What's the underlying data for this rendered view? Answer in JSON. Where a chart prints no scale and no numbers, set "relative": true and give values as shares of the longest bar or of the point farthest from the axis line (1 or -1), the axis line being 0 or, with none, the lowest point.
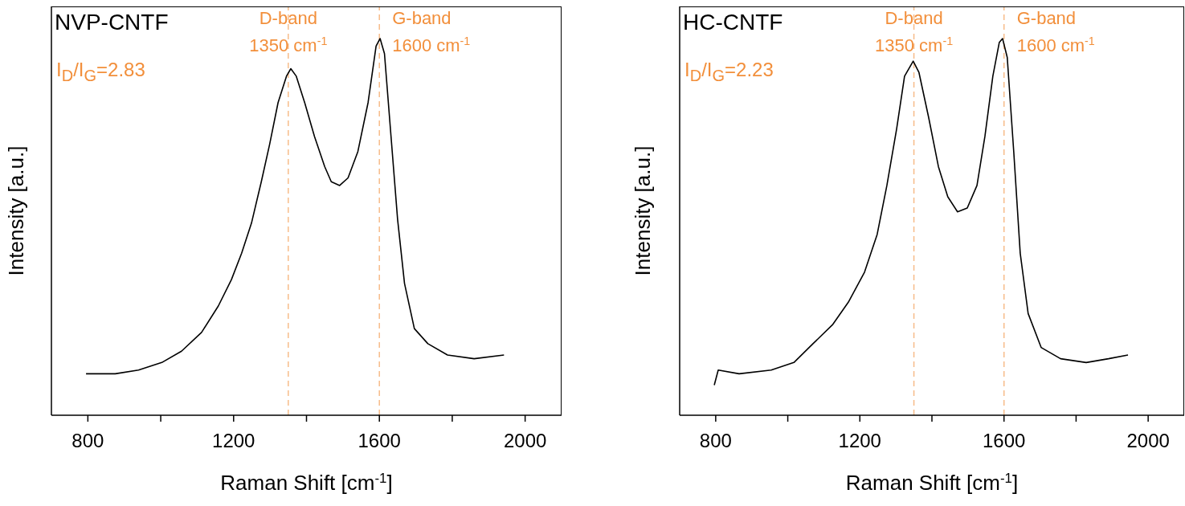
{
  "chart_data": [
    {
      "type": "line",
      "title": "NVP-CNTF",
      "xlabel": "Raman Shift [cm$^{-1}$]",
      "ylabel": "Intensity [a.u.]",
      "relative": true,
      "x": [
        795,
        875,
        939,
        1003,
        1057,
        1112,
        1158,
        1194,
        1222,
        1249,
        1276,
        1299,
        1322,
        1345,
        1357,
        1372,
        1395,
        1422,
        1450,
        1468,
        1491,
        1514,
        1541,
        1569,
        1591,
        1602,
        1614,
        1632,
        1650,
        1669,
        1696,
        1733,
        1787,
        1860,
        1942
      ],
      "series": [
        {
          "color": "#000000",
          "values": [
            0.11,
            0.11,
            0.12,
            0.14,
            0.17,
            0.22,
            0.29,
            0.36,
            0.43,
            0.51,
            0.62,
            0.72,
            0.83,
            0.9,
            0.92,
            0.9,
            0.83,
            0.74,
            0.66,
            0.62,
            0.61,
            0.63,
            0.7,
            0.83,
            0.98,
            1,
            0.96,
            0.74,
            0.52,
            0.35,
            0.23,
            0.19,
            0.16,
            0.15,
            0.16
          ]
        }
      ],
      "xlim": [
        700,
        2100
      ],
      "xticks": [
        800,
        {
          "value": 1000,
          "label": null
        },
        1200,
        {
          "value": 1400,
          "label": null
        },
        1600,
        {
          "value": 1800,
          "label": null
        },
        2000
      ],
      "ref_lines": [
        {
          "axis": "x",
          "value": 1350,
          "label": "D-band\n1350 cm$^{-1}$",
          "color": "#f28f3b",
          "line_style": "dashed"
        },
        {
          "axis": "x",
          "value": 1600,
          "label": "G-band\n1600 cm$^{-1}$",
          "color": "#f28f3b",
          "line_style": "dashed"
        }
      ],
      "annotations": [
        "I$_{D}$/I$_{G}$=2.83"
      ]
    },
    {
      "type": "line",
      "title": "HC-CNTF",
      "xlabel": "Raman Shift [cm$^{-1}$]",
      "ylabel": "Intensity [a.u.]",
      "relative": true,
      "x": [
        796,
        807,
        865,
        954,
        1017,
        1070,
        1124,
        1168,
        1213,
        1248,
        1275,
        1302,
        1324,
        1348,
        1364,
        1391,
        1418,
        1444,
        1471,
        1498,
        1525,
        1547,
        1569,
        1587,
        1596,
        1609,
        1627,
        1645,
        1667,
        1703,
        1757,
        1828,
        1890,
        1944
      ],
      "series": [
        {
          "color": "#000000",
          "values": [
            0.08,
            0.12,
            0.11,
            0.12,
            0.14,
            0.19,
            0.24,
            0.3,
            0.38,
            0.48,
            0.61,
            0.76,
            0.9,
            0.94,
            0.91,
            0.79,
            0.66,
            0.58,
            0.54,
            0.55,
            0.61,
            0.74,
            0.9,
            0.99,
            1,
            0.95,
            0.7,
            0.43,
            0.27,
            0.18,
            0.15,
            0.14,
            0.15,
            0.16
          ]
        }
      ],
      "xlim": [
        700,
        2100
      ],
      "xticks": [
        800,
        {
          "value": 1000,
          "label": null
        },
        1200,
        {
          "value": 1400,
          "label": null
        },
        1600,
        {
          "value": 1800,
          "label": null
        },
        2000
      ],
      "ref_lines": [
        {
          "axis": "x",
          "value": 1350,
          "label": "D-band\n1350 cm$^{-1}$",
          "color": "#f28f3b",
          "line_style": "dashed"
        },
        {
          "axis": "x",
          "value": 1600,
          "label": "G-band\n1600 cm$^{-1}$",
          "color": "#f28f3b",
          "line_style": "dashed"
        }
      ],
      "annotations": [
        "I$_{D}$/I$_{G}$=2.23"
      ]
    }
  ]
}
